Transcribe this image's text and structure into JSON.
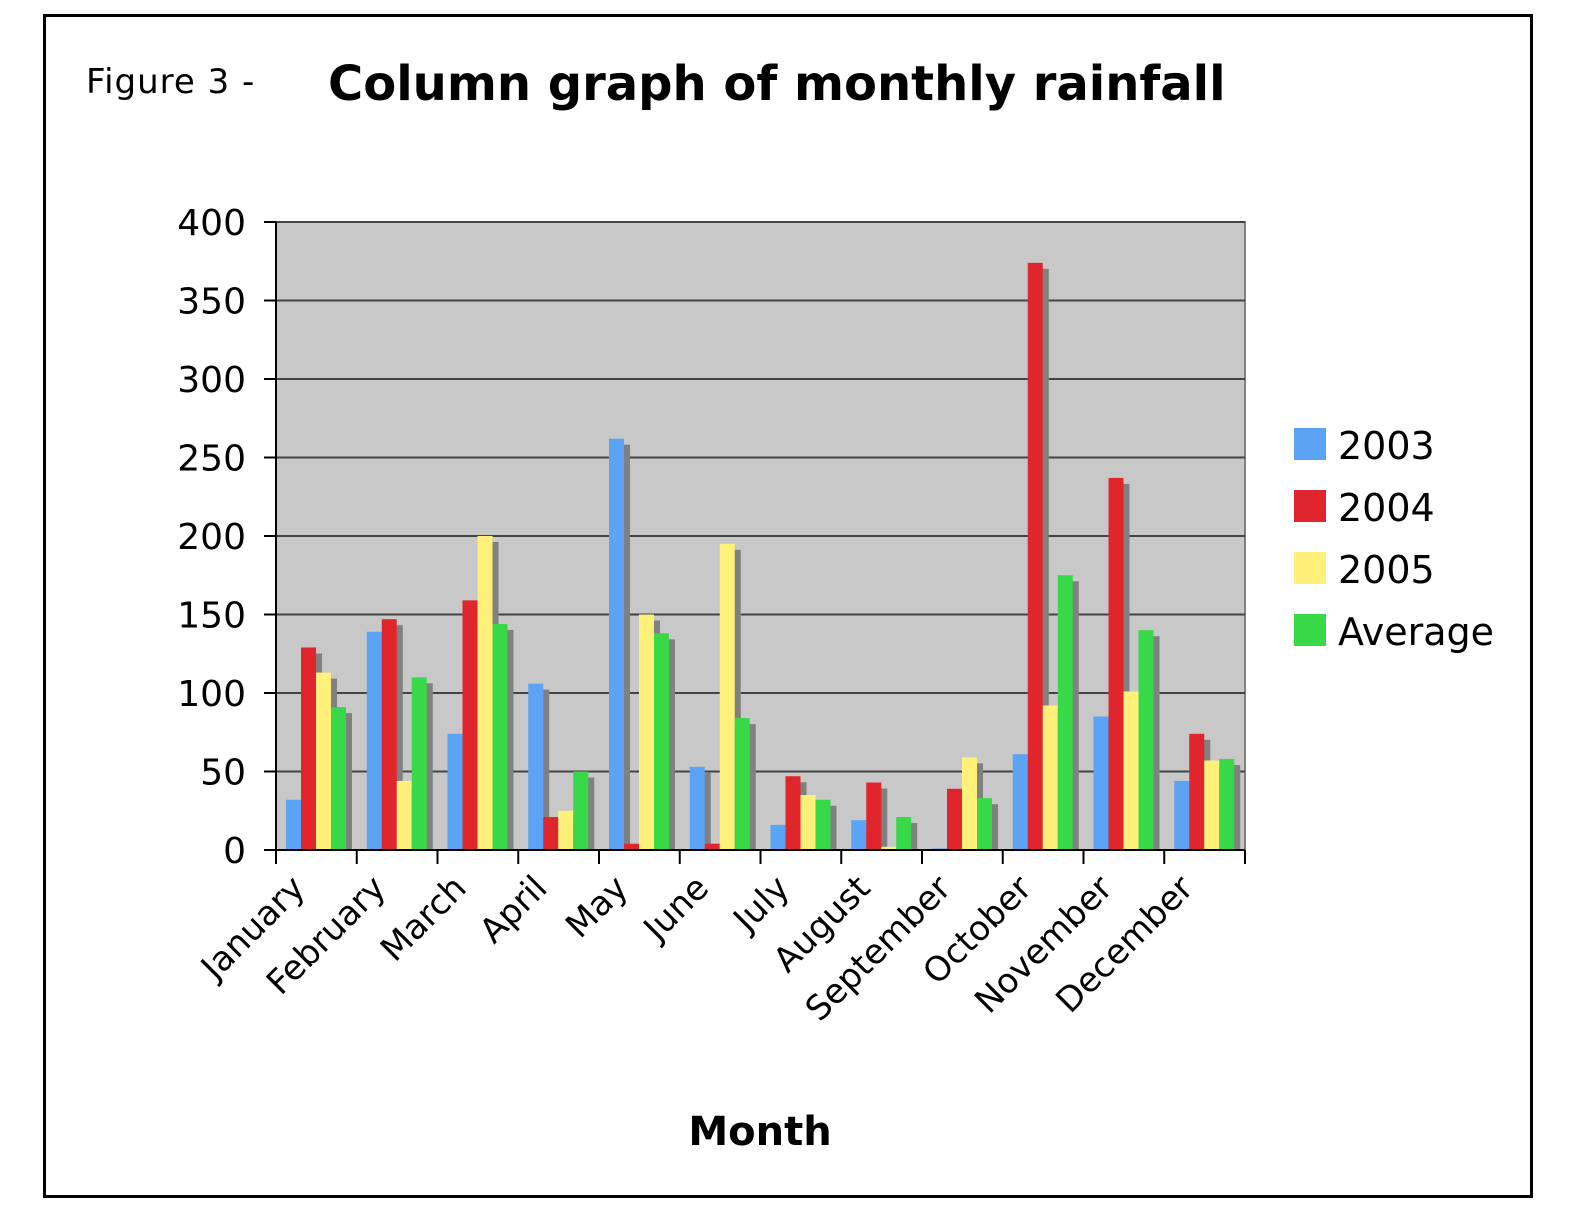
{
  "figure_label": "Figure 3 -",
  "chart_data": {
    "type": "bar",
    "title": "Column graph of monthly rainfall",
    "xlabel": "Month",
    "ylabel": "",
    "ylim": [
      0,
      400
    ],
    "yticks": [
      0,
      50,
      100,
      150,
      200,
      250,
      300,
      350,
      400
    ],
    "grid": true,
    "legend_position": "right",
    "categories": [
      "January",
      "February",
      "March",
      "April",
      "May",
      "June",
      "July",
      "August",
      "September",
      "October",
      "November",
      "December"
    ],
    "series": [
      {
        "name": "2003",
        "color": "#5aa3f5",
        "values": [
          32,
          139,
          74,
          106,
          262,
          53,
          16,
          19,
          1,
          61,
          85,
          44
        ]
      },
      {
        "name": "2004",
        "color": "#e0262c",
        "values": [
          129,
          147,
          159,
          21,
          4,
          4,
          47,
          43,
          39,
          374,
          237,
          74
        ]
      },
      {
        "name": "2005",
        "color": "#fff07a",
        "values": [
          113,
          44,
          200,
          25,
          150,
          195,
          35,
          2,
          59,
          92,
          101,
          57
        ]
      },
      {
        "name": "Average",
        "color": "#38d948",
        "values": [
          91,
          110,
          144,
          50,
          138,
          84,
          32,
          21,
          33,
          175,
          140,
          58
        ]
      }
    ],
    "plot_background": "#c8c8c8",
    "shadow_color": "#808080"
  }
}
